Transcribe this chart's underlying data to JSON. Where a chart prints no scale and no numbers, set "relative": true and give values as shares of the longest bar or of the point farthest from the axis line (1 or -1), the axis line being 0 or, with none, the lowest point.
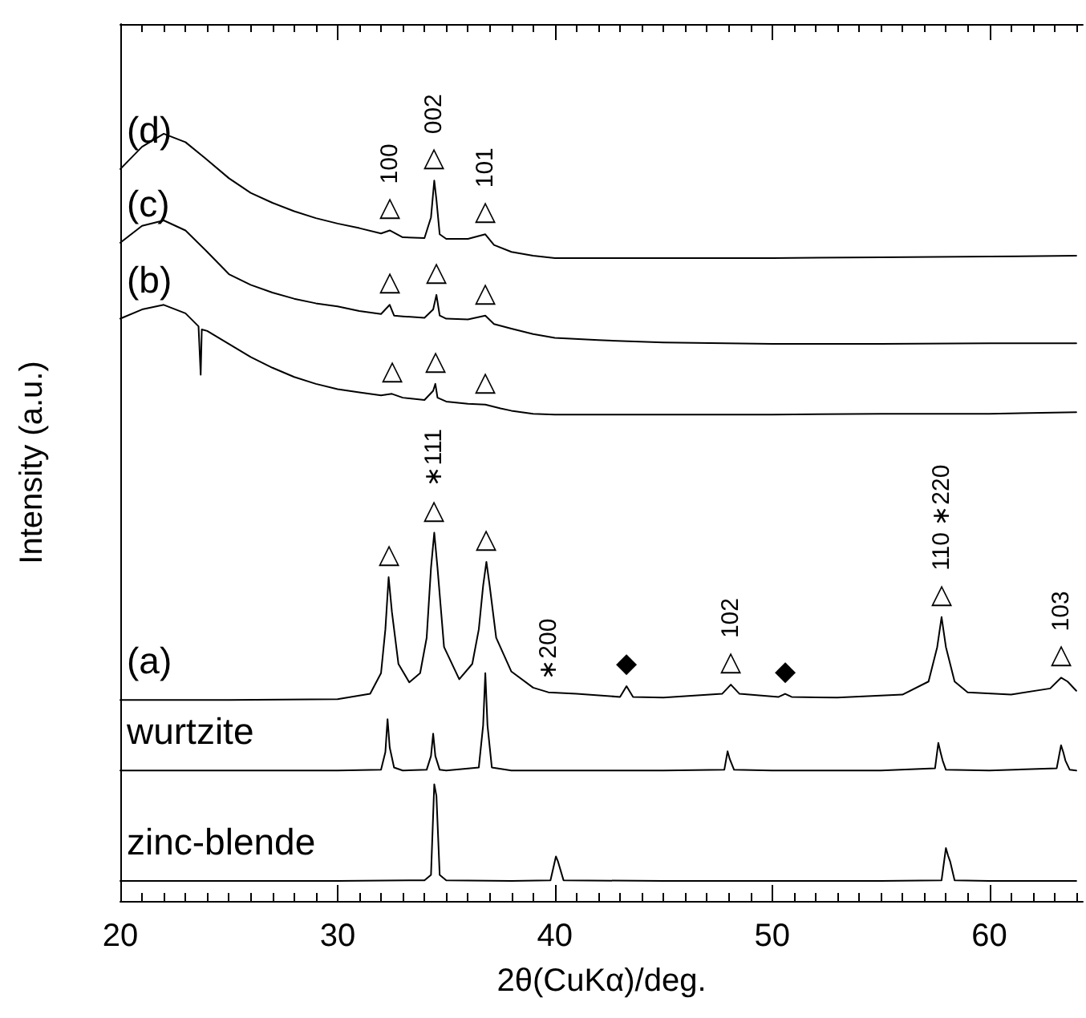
{
  "chart_data": {
    "type": "line",
    "relative": true,
    "xlabel": "2θ(CuKα)/deg.",
    "ylabel": "Intensity (a.u.)",
    "xlim": [
      20,
      64.3
    ],
    "xticks": [
      20,
      30,
      40,
      50,
      60
    ],
    "grid": false,
    "legend": false,
    "marker": "none",
    "line_style": "solid",
    "series": [
      {
        "name": "(d)",
        "color": "#000000",
        "x": [
          20,
          21,
          22,
          23,
          24,
          25,
          26,
          27,
          28,
          29,
          30,
          31,
          32,
          32.4,
          33,
          34,
          34.3,
          34.45,
          34.55,
          34.7,
          35,
          36,
          36.8,
          37.2,
          38,
          39,
          40,
          42,
          45,
          50,
          55,
          60,
          64
        ],
        "values": [
          0.954,
          0.983,
          1,
          0.989,
          0.966,
          0.942,
          0.923,
          0.91,
          0.899,
          0.89,
          0.883,
          0.877,
          0.87,
          0.874,
          0.865,
          0.864,
          0.891,
          0.939,
          0.914,
          0.869,
          0.863,
          0.863,
          0.869,
          0.855,
          0.846,
          0.841,
          0.838,
          0.838,
          0.838,
          0.838,
          0.839,
          0.84,
          0.841
        ]
      },
      {
        "name": "(c)",
        "color": "#000000",
        "x": [
          20,
          21,
          22,
          23,
          24,
          25,
          26,
          27,
          28,
          29,
          30,
          31,
          32,
          32.4,
          32.6,
          33,
          34,
          34.4,
          34.55,
          34.7,
          35,
          36,
          36.8,
          37.2,
          38,
          39,
          40,
          42,
          45,
          50,
          55,
          60,
          64
        ],
        "values": [
          0.858,
          0.88,
          0.887,
          0.874,
          0.846,
          0.817,
          0.803,
          0.793,
          0.785,
          0.779,
          0.775,
          0.769,
          0.765,
          0.777,
          0.763,
          0.762,
          0.76,
          0.771,
          0.79,
          0.763,
          0.759,
          0.758,
          0.763,
          0.752,
          0.746,
          0.739,
          0.734,
          0.731,
          0.728,
          0.726,
          0.726,
          0.727,
          0.727
        ]
      },
      {
        "name": "(b)",
        "color": "#000000",
        "x": [
          20,
          21,
          22,
          23,
          23.6,
          23.7,
          23.75,
          24,
          25,
          26,
          27,
          28,
          29,
          30,
          31,
          32,
          32.5,
          33,
          34,
          34.4,
          34.5,
          34.6,
          35,
          36,
          36.8,
          37.5,
          38,
          39,
          40,
          42,
          45,
          50,
          55,
          60,
          64
        ],
        "values": [
          0.759,
          0.771,
          0.777,
          0.766,
          0.749,
          0.686,
          0.745,
          0.743,
          0.726,
          0.709,
          0.695,
          0.683,
          0.674,
          0.667,
          0.663,
          0.659,
          0.661,
          0.656,
          0.653,
          0.665,
          0.674,
          0.656,
          0.651,
          0.648,
          0.647,
          0.642,
          0.639,
          0.635,
          0.634,
          0.634,
          0.634,
          0.634,
          0.635,
          0.635,
          0.637
        ]
      },
      {
        "name": "(a)",
        "color": "#000000",
        "x": [
          20,
          25,
          30,
          31.5,
          32.0,
          32.2,
          32.35,
          32.5,
          32.8,
          33.3,
          33.8,
          34.1,
          34.3,
          34.45,
          34.6,
          34.9,
          35.6,
          36.2,
          36.5,
          36.7,
          36.85,
          37.0,
          37.3,
          38,
          39,
          39.7,
          41,
          43.0,
          43.3,
          43.6,
          45,
          47.7,
          48.1,
          48.5,
          50.3,
          50.6,
          50.9,
          53,
          56,
          57.2,
          57.6,
          57.8,
          58.0,
          58.4,
          59,
          61,
          62.8,
          63.3,
          63.6,
          64
        ],
        "values": [
          0.262,
          0.262,
          0.263,
          0.27,
          0.297,
          0.354,
          0.422,
          0.377,
          0.309,
          0.285,
          0.297,
          0.343,
          0.434,
          0.48,
          0.434,
          0.331,
          0.289,
          0.309,
          0.354,
          0.411,
          0.442,
          0.411,
          0.343,
          0.299,
          0.278,
          0.272,
          0.27,
          0.266,
          0.28,
          0.266,
          0.265,
          0.27,
          0.282,
          0.27,
          0.266,
          0.27,
          0.266,
          0.265,
          0.269,
          0.286,
          0.331,
          0.37,
          0.331,
          0.286,
          0.272,
          0.269,
          0.277,
          0.291,
          0.286,
          0.274
        ]
      },
      {
        "name": "wurtzite",
        "color": "#000000",
        "x": [
          20,
          25,
          30,
          32.0,
          32.2,
          32.3,
          32.4,
          32.6,
          33,
          34.1,
          34.3,
          34.4,
          34.5,
          34.7,
          35,
          36.5,
          36.7,
          36.8,
          36.9,
          37.1,
          38,
          45,
          47.8,
          47.95,
          48.05,
          48.25,
          50,
          55,
          57.5,
          57.65,
          57.75,
          57.85,
          58.0,
          60,
          63.1,
          63.3,
          63.4,
          63.5,
          63.7,
          64
        ],
        "values": [
          0.17,
          0.17,
          0.17,
          0.171,
          0.194,
          0.237,
          0.2,
          0.174,
          0.17,
          0.171,
          0.189,
          0.218,
          0.189,
          0.171,
          0.17,
          0.174,
          0.229,
          0.297,
          0.229,
          0.174,
          0.17,
          0.17,
          0.171,
          0.195,
          0.185,
          0.171,
          0.17,
          0.17,
          0.173,
          0.206,
          0.194,
          0.183,
          0.171,
          0.17,
          0.173,
          0.203,
          0.194,
          0.183,
          0.171,
          0.17
        ]
      },
      {
        "name": "zinc-blende",
        "color": "#000000",
        "x": [
          20,
          25,
          30,
          34.0,
          34.3,
          34.45,
          34.55,
          34.7,
          35,
          38,
          39.8,
          40.05,
          40.15,
          40.4,
          45,
          50,
          55,
          57.8,
          58.0,
          58.1,
          58.2,
          58.4,
          60,
          63,
          64
        ],
        "values": [
          0.026,
          0.026,
          0.026,
          0.027,
          0.034,
          0.152,
          0.137,
          0.034,
          0.027,
          0.026,
          0.027,
          0.058,
          0.051,
          0.027,
          0.026,
          0.026,
          0.026,
          0.027,
          0.069,
          0.059,
          0.051,
          0.027,
          0.026,
          0.026,
          0.026
        ]
      }
    ],
    "annotations": [
      {
        "text": "△",
        "x": 32.4,
        "y": 0.874
      },
      {
        "text": "100",
        "x": 32.4,
        "y": 0.874
      },
      {
        "text": "△",
        "x": 34.45,
        "y": 0.939
      },
      {
        "text": "002",
        "x": 34.45,
        "y": 0.939
      },
      {
        "text": "△",
        "x": 36.8,
        "y": 0.869
      },
      {
        "text": "101",
        "x": 36.8,
        "y": 0.869
      },
      {
        "text": "△",
        "x": 32.4,
        "y": 0.777
      },
      {
        "text": "△",
        "x": 34.55,
        "y": 0.79
      },
      {
        "text": "△",
        "x": 36.8,
        "y": 0.763
      },
      {
        "text": "△",
        "x": 32.5,
        "y": 0.661
      },
      {
        "text": "△",
        "x": 34.5,
        "y": 0.674
      },
      {
        "text": "△",
        "x": 36.8,
        "y": 0.647
      },
      {
        "text": "△",
        "x": 32.35,
        "y": 0.422
      },
      {
        "text": "△",
        "x": 34.45,
        "y": 0.48
      },
      {
        "text": "∗111",
        "x": 34.45,
        "y": 0.48
      },
      {
        "text": "△",
        "x": 36.85,
        "y": 0.442
      },
      {
        "text": "∗200",
        "x": 39.7,
        "y": 0.272
      },
      {
        "text": "◆",
        "x": 43.3,
        "y": 0.28
      },
      {
        "text": "△",
        "x": 48.1,
        "y": 0.282
      },
      {
        "text": "102",
        "x": 48.1,
        "y": 0.282
      },
      {
        "text": "◆",
        "x": 50.6,
        "y": 0.27
      },
      {
        "text": "△",
        "x": 57.8,
        "y": 0.37
      },
      {
        "text": "110 ∗220",
        "x": 57.8,
        "y": 0.37
      },
      {
        "text": "△",
        "x": 63.3,
        "y": 0.291
      },
      {
        "text": "103",
        "x": 63.3,
        "y": 0.291
      }
    ]
  }
}
